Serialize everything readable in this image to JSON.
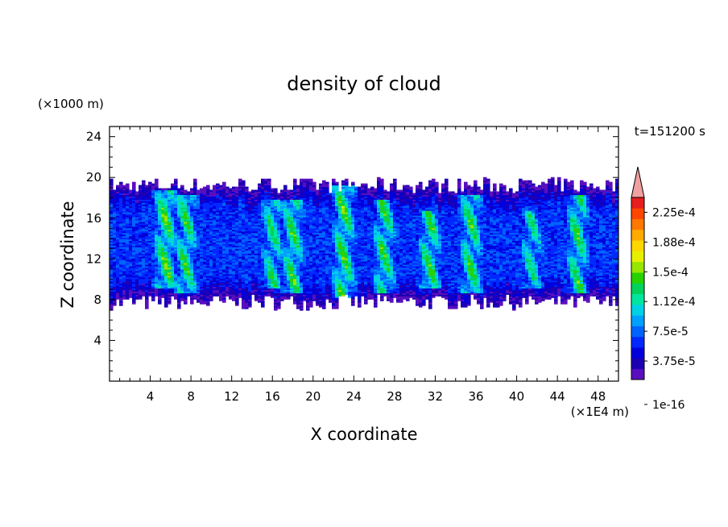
{
  "chart_data": {
    "type": "heatmap",
    "title": "density of cloud",
    "time_label": "t=151200 s",
    "xlabel": "X coordinate",
    "ylabel": "Z coordinate",
    "x_unit": "(×1E4 m)",
    "y_unit": "(×1000 m)",
    "xlim": [
      0,
      50
    ],
    "ylim": [
      0,
      25
    ],
    "x_ticks": [
      4,
      8,
      12,
      16,
      20,
      24,
      28,
      32,
      36,
      40,
      44,
      48
    ],
    "y_ticks": [
      4,
      8,
      12,
      16,
      20,
      24
    ],
    "cloud_layer": {
      "base_min": 7,
      "base_max": 8.5,
      "top_min": 18.5,
      "top_max": 20
    },
    "high_density_columns": [
      {
        "x_center": 5.5,
        "z_range": [
          10,
          18
        ],
        "level": 0.85
      },
      {
        "x_center": 7.5,
        "z_range": [
          9.5,
          17.5
        ],
        "level": 0.8
      },
      {
        "x_center": 16,
        "z_range": [
          10,
          17
        ],
        "level": 0.75
      },
      {
        "x_center": 18,
        "z_range": [
          9.5,
          17
        ],
        "level": 0.8
      },
      {
        "x_center": 23,
        "z_range": [
          9,
          18.5
        ],
        "level": 0.85
      },
      {
        "x_center": 27,
        "z_range": [
          9.5,
          17
        ],
        "level": 0.8
      },
      {
        "x_center": 31.5,
        "z_range": [
          10,
          16
        ],
        "level": 0.8
      },
      {
        "x_center": 35.5,
        "z_range": [
          9.5,
          17.5
        ],
        "level": 0.8
      },
      {
        "x_center": 41.5,
        "z_range": [
          10,
          16
        ],
        "level": 0.7
      },
      {
        "x_center": 46,
        "z_range": [
          9.5,
          17.5
        ],
        "level": 0.8
      }
    ],
    "colorbar": {
      "labels": [
        "2.25e-4",
        "1.88e-4",
        "1.5e-4",
        "1.12e-4",
        "7.5e-5",
        "3.75e-5",
        "1e-16"
      ],
      "colors_bottom_to_top": [
        "#5a0fbe",
        "#1d00b4",
        "#0000dc",
        "#0028ff",
        "#0064ff",
        "#00a0ff",
        "#00d2e6",
        "#00e6a0",
        "#00d25a",
        "#28d200",
        "#96e600",
        "#e6f000",
        "#ffd700",
        "#ffaa00",
        "#ff7800",
        "#ff4600",
        "#e61e1e"
      ],
      "extend_color": "#f0a0a0"
    }
  }
}
